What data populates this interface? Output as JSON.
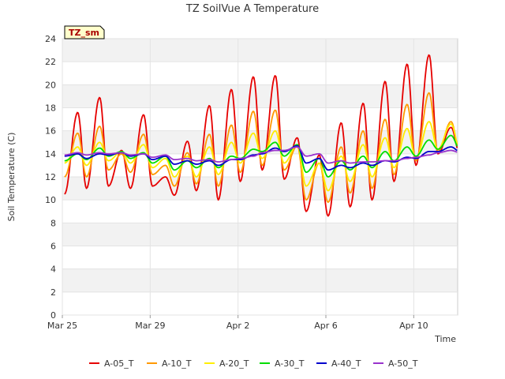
{
  "chart_data": {
    "type": "line",
    "title": "TZ SoilVue A Temperature",
    "xlabel": "Time",
    "ylabel": "Soil Temperature (C)",
    "badge": "TZ_sm",
    "ylim": [
      0,
      24
    ],
    "yticks": [
      0,
      2,
      4,
      6,
      8,
      10,
      12,
      14,
      16,
      18,
      20,
      22,
      24
    ],
    "xlim": [
      "2025-03-25",
      "2025-04-12"
    ],
    "xticks": [
      {
        "label": "Mar 25",
        "date": "2025-03-25"
      },
      {
        "label": "Mar 29",
        "date": "2025-03-29"
      },
      {
        "label": "Apr 2",
        "date": "2025-04-02"
      },
      {
        "label": "Apr 6",
        "date": "2025-04-06"
      },
      {
        "label": "Apr 10",
        "date": "2025-04-10"
      }
    ],
    "legend_position": "bottom",
    "grid": true,
    "x_dates": [
      "2025-03-25",
      "2025-03-26",
      "2025-03-27",
      "2025-03-28",
      "2025-03-29",
      "2025-03-30",
      "2025-03-31",
      "2025-04-01",
      "2025-04-02",
      "2025-04-03",
      "2025-04-04",
      "2025-04-05",
      "2025-04-06",
      "2025-04-07",
      "2025-04-08",
      "2025-04-09",
      "2025-04-10",
      "2025-04-11"
    ],
    "series": [
      {
        "name": "A-05_T",
        "color": "#e60000",
        "daily_min": [
          10.5,
          11.0,
          11.2,
          11.0,
          11.2,
          10.4,
          10.8,
          10.0,
          11.6,
          12.6,
          11.8,
          9.0,
          8.6,
          9.4,
          10.0,
          11.6,
          13.0,
          14.0
        ],
        "daily_max": [
          17.6,
          18.9,
          14.3,
          17.4,
          12.0,
          15.1,
          18.2,
          19.6,
          20.7,
          20.8,
          15.4,
          13.9,
          16.7,
          18.4,
          20.3,
          21.8,
          22.6,
          16.3
        ]
      },
      {
        "name": "A-10_T",
        "color": "#ff9900",
        "daily_min": [
          12.0,
          12.0,
          12.6,
          12.4,
          12.2,
          11.2,
          11.4,
          11.2,
          12.4,
          13.0,
          12.6,
          10.0,
          9.8,
          10.6,
          11.0,
          12.2,
          13.4,
          14.2
        ],
        "daily_max": [
          15.8,
          16.4,
          14.0,
          15.7,
          13.0,
          14.1,
          15.7,
          16.5,
          17.7,
          17.8,
          14.7,
          13.2,
          14.6,
          16.0,
          17.0,
          18.3,
          19.3,
          16.8
        ]
      },
      {
        "name": "A-20_T",
        "color": "#ffee00",
        "daily_min": [
          13.2,
          13.0,
          13.4,
          13.2,
          12.8,
          12.0,
          12.0,
          12.2,
          13.2,
          13.6,
          13.2,
          11.2,
          10.8,
          11.6,
          12.0,
          12.8,
          13.6,
          14.4
        ],
        "daily_max": [
          14.6,
          15.0,
          14.2,
          14.8,
          13.6,
          13.8,
          14.6,
          15.0,
          15.8,
          16.0,
          14.8,
          13.2,
          13.8,
          14.8,
          15.4,
          16.2,
          16.8,
          16.6
        ]
      },
      {
        "name": "A-30_T",
        "color": "#00dd00",
        "daily_min": [
          13.4,
          13.5,
          13.8,
          13.6,
          13.2,
          12.6,
          12.8,
          12.8,
          13.6,
          14.2,
          13.8,
          12.4,
          12.0,
          12.6,
          12.8,
          13.4,
          13.8,
          14.4
        ],
        "daily_max": [
          14.0,
          14.5,
          14.2,
          14.1,
          13.8,
          13.4,
          13.6,
          13.8,
          14.4,
          15.0,
          14.8,
          13.6,
          13.4,
          13.8,
          14.2,
          14.6,
          15.2,
          15.6
        ]
      },
      {
        "name": "A-40_T",
        "color": "#0000cc",
        "daily_min": [
          13.8,
          13.6,
          13.9,
          13.8,
          13.5,
          13.1,
          13.1,
          13.0,
          13.5,
          14.0,
          14.2,
          13.2,
          12.6,
          12.8,
          13.0,
          13.3,
          13.6,
          14.2
        ],
        "daily_max": [
          14.0,
          14.0,
          14.1,
          14.0,
          13.8,
          13.4,
          13.4,
          13.5,
          13.9,
          14.5,
          14.7,
          13.6,
          13.0,
          13.2,
          13.4,
          13.7,
          14.2,
          14.6
        ]
      },
      {
        "name": "A-50_T",
        "color": "#9933cc",
        "daily_min": [
          13.9,
          13.9,
          14.0,
          13.9,
          13.7,
          13.5,
          13.4,
          13.3,
          13.6,
          14.1,
          14.3,
          13.8,
          13.2,
          13.2,
          13.3,
          13.4,
          13.7,
          14.1
        ],
        "daily_max": [
          14.1,
          14.1,
          14.1,
          14.0,
          13.9,
          13.6,
          13.5,
          13.5,
          13.8,
          14.3,
          14.6,
          14.0,
          13.4,
          13.3,
          13.4,
          13.6,
          13.9,
          14.3
        ]
      }
    ]
  }
}
